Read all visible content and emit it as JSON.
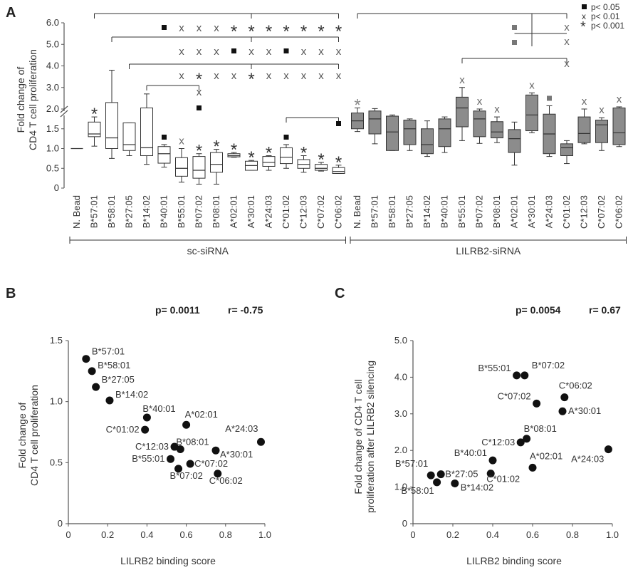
{
  "panels": {
    "A": "A",
    "B": "B",
    "C": "C"
  },
  "legend": {
    "square": "p< 0.05",
    "x": "p< 0.01",
    "star": "p< 0.001"
  },
  "colors": {
    "sc": "#ffffff",
    "lilrb2": "#8c8c8c",
    "mark_gray": "#777777",
    "mark_black": "#111111"
  },
  "chart_data": [
    {
      "type": "box",
      "panel": "A",
      "ylabel": "Fold change of\nCD4 T cell proliferation",
      "y_ticks": [
        "0",
        "0.5",
        "1.0",
        "1.5",
        "2.0",
        "3.0",
        "4.0",
        "5.0",
        "6.0"
      ],
      "y_axis_break": "between 2.0 and 3.0",
      "groups": [
        {
          "name": "sc-siRNA",
          "categories": [
            "N. Bead",
            "B*57:01",
            "B*58:01",
            "B*27:05",
            "B*14:02",
            "B*40:01",
            "B*55:01",
            "B*07:02",
            "B*08:01",
            "A*02:01",
            "A*30:01",
            "A*24:03",
            "C*01:02",
            "C*12:03",
            "C*07:02",
            "C*06:02"
          ],
          "boxes": [
            {
              "min": 1.0,
              "q1": 1.0,
              "median": 1.0,
              "q3": 1.0,
              "max": 1.0
            },
            {
              "min": 1.06,
              "q1": 1.3,
              "median": 1.37,
              "q3": 1.67,
              "max": 1.8
            },
            {
              "min": 0.75,
              "q1": 1.0,
              "median": 1.27,
              "q3": 2.3,
              "max": 3.8
            },
            {
              "min": 0.82,
              "q1": 0.95,
              "median": 1.1,
              "q3": 1.65,
              "max": 1.65
            },
            {
              "min": 0.6,
              "q1": 0.82,
              "median": 1.02,
              "q3": 2.05,
              "max": 2.7
            },
            {
              "min": 0.53,
              "q1": 0.63,
              "median": 0.87,
              "q3": 1.05,
              "max": 1.1
            },
            {
              "min": 0.15,
              "q1": 0.3,
              "median": 0.5,
              "q3": 0.77,
              "max": 1.0
            },
            {
              "min": 0.1,
              "q1": 0.25,
              "median": 0.45,
              "q3": 0.8,
              "max": 0.87
            },
            {
              "min": 0.1,
              "q1": 0.4,
              "median": 0.6,
              "q3": 0.9,
              "max": 0.98
            },
            {
              "min": 0.78,
              "q1": 0.79,
              "median": 0.82,
              "q3": 0.87,
              "max": 0.9
            },
            {
              "min": 0.45,
              "q1": 0.45,
              "median": 0.57,
              "q3": 0.68,
              "max": 0.7
            },
            {
              "min": 0.45,
              "q1": 0.55,
              "median": 0.65,
              "q3": 0.8,
              "max": 0.82
            },
            {
              "min": 0.5,
              "q1": 0.62,
              "median": 0.78,
              "q3": 1.02,
              "max": 1.1
            },
            {
              "min": 0.4,
              "q1": 0.5,
              "median": 0.6,
              "q3": 0.72,
              "max": 0.82
            },
            {
              "min": 0.43,
              "q1": 0.45,
              "median": 0.5,
              "q3": 0.6,
              "max": 0.65
            },
            {
              "min": 0.37,
              "q1": 0.37,
              "median": 0.42,
              "q3": 0.52,
              "max": 0.58
            }
          ],
          "markers": [
            "",
            "star",
            "",
            "",
            "",
            "square",
            "x",
            "star",
            "star",
            "star",
            "star",
            "star",
            "square",
            "star",
            "star",
            "star"
          ]
        },
        {
          "name": "LILRB2-siRNA",
          "categories": [
            "N. Bead",
            "B*57:01",
            "B*58:01",
            "B*27:05",
            "B*14:02",
            "B*40:01",
            "B*55:01",
            "B*07:02",
            "B*08:01",
            "A*02:01",
            "A*30:01",
            "A*24:03",
            "C*01:02",
            "C*12:03",
            "C*07:02",
            "C*06:02"
          ],
          "boxes": [
            {
              "min": 1.43,
              "q1": 1.5,
              "median": 1.7,
              "q3": 1.9,
              "max": 2.05
            },
            {
              "min": 1.12,
              "q1": 1.37,
              "median": 1.75,
              "q3": 1.95,
              "max": 2.02
            },
            {
              "min": 0.95,
              "q1": 0.95,
              "median": 1.42,
              "q3": 1.82,
              "max": 1.85
            },
            {
              "min": 0.95,
              "q1": 1.1,
              "median": 1.5,
              "q3": 1.72,
              "max": 1.75
            },
            {
              "min": 0.8,
              "q1": 0.87,
              "median": 1.1,
              "q3": 1.5,
              "max": 1.7
            },
            {
              "min": 0.9,
              "q1": 1.05,
              "median": 1.5,
              "q3": 1.75,
              "max": 1.8
            },
            {
              "min": 1.2,
              "q1": 1.55,
              "median": 2.05,
              "q3": 2.55,
              "max": 3.0
            },
            {
              "min": 1.13,
              "q1": 1.3,
              "median": 1.75,
              "q3": 1.95,
              "max": 2.0
            },
            {
              "min": 1.15,
              "q1": 1.27,
              "median": 1.42,
              "q3": 1.68,
              "max": 1.8
            },
            {
              "min": 0.58,
              "q1": 0.9,
              "median": 1.25,
              "q3": 1.48,
              "max": 1.67
            },
            {
              "min": 1.4,
              "q1": 1.45,
              "median": 1.85,
              "q3": 2.65,
              "max": 2.75
            },
            {
              "min": 0.8,
              "q1": 0.87,
              "median": 1.37,
              "q3": 1.87,
              "max": 2.15
            },
            {
              "min": 0.62,
              "q1": 0.82,
              "median": 1.02,
              "q3": 1.12,
              "max": 1.2
            },
            {
              "min": 1.12,
              "q1": 1.15,
              "median": 1.38,
              "q3": 1.8,
              "max": 2.0
            },
            {
              "min": 0.95,
              "q1": 1.15,
              "median": 1.6,
              "q3": 1.72,
              "max": 1.78
            },
            {
              "min": 1.05,
              "q1": 1.1,
              "median": 1.4,
              "q3": 2.05,
              "max": 2.1
            }
          ],
          "markers": [
            "star",
            "",
            "",
            "",
            "",
            "",
            "x",
            "x",
            "x",
            "",
            "x",
            "square",
            "",
            "x",
            "x",
            "x"
          ]
        }
      ]
    },
    {
      "type": "scatter",
      "panel": "B",
      "stat": {
        "p": "p= 0.0011",
        "r": "r= -0.75"
      },
      "xlabel": "LILRB2 binding score",
      "ylabel": "Fold change of\nCD4 T cell proliferation",
      "xlim": [
        0,
        1.0
      ],
      "ylim": [
        0,
        1.5
      ],
      "x_ticks": [
        "0",
        "0.2",
        "0.4",
        "0.6",
        "0.8",
        "1.0"
      ],
      "y_ticks": [
        "0",
        "0.5",
        "1.0",
        "1.5"
      ],
      "points": [
        {
          "label": "B*57:01",
          "x": 0.09,
          "y": 1.35
        },
        {
          "label": "B*58:01",
          "x": 0.12,
          "y": 1.25
        },
        {
          "label": "B*27:05",
          "x": 0.14,
          "y": 1.12
        },
        {
          "label": "B*14:02",
          "x": 0.21,
          "y": 1.01
        },
        {
          "label": "B*40:01",
          "x": 0.4,
          "y": 0.87
        },
        {
          "label": "C*01:02",
          "x": 0.39,
          "y": 0.77
        },
        {
          "label": "A*02:01",
          "x": 0.6,
          "y": 0.81
        },
        {
          "label": "C*12:03",
          "x": 0.54,
          "y": 0.63
        },
        {
          "label": "B*08:01",
          "x": 0.57,
          "y": 0.61
        },
        {
          "label": "B*55:01",
          "x": 0.52,
          "y": 0.53
        },
        {
          "label": "B*07:02",
          "x": 0.56,
          "y": 0.45
        },
        {
          "label": "C*07:02",
          "x": 0.62,
          "y": 0.49
        },
        {
          "label": "A*30:01",
          "x": 0.75,
          "y": 0.6
        },
        {
          "label": "C*06:02",
          "x": 0.76,
          "y": 0.41
        },
        {
          "label": "A*24:03",
          "x": 0.98,
          "y": 0.67
        }
      ]
    },
    {
      "type": "scatter",
      "panel": "C",
      "stat": {
        "p": "p= 0.0054",
        "r": "r= 0.67"
      },
      "xlabel": "LILRB2 binding score",
      "ylabel": "Fold change of CD4 T cell\nproliferation after LILRB2 silencing",
      "xlim": [
        0,
        1.0
      ],
      "ylim": [
        0,
        5.0
      ],
      "x_ticks": [
        "0",
        "0.2",
        "0.4",
        "0.6",
        "0.8",
        "1.0"
      ],
      "y_ticks": [
        "0",
        "1.0",
        "2.0",
        "3.0",
        "4.0",
        "5.0"
      ],
      "points": [
        {
          "label": "B*57:01",
          "x": 0.09,
          "y": 1.32
        },
        {
          "label": "B*58:01",
          "x": 0.12,
          "y": 1.13
        },
        {
          "label": "B*27:05",
          "x": 0.14,
          "y": 1.35
        },
        {
          "label": "B*14:02",
          "x": 0.21,
          "y": 1.1
        },
        {
          "label": "C*01:02",
          "x": 0.39,
          "y": 1.37
        },
        {
          "label": "B*40:01",
          "x": 0.4,
          "y": 1.73
        },
        {
          "label": "A*02:01",
          "x": 0.6,
          "y": 1.53
        },
        {
          "label": "C*12:03",
          "x": 0.54,
          "y": 2.22
        },
        {
          "label": "B*08:01",
          "x": 0.57,
          "y": 2.32
        },
        {
          "label": "B*55:01",
          "x": 0.52,
          "y": 4.05
        },
        {
          "label": "B*07:02",
          "x": 0.56,
          "y": 4.05
        },
        {
          "label": "C*07:02",
          "x": 0.62,
          "y": 3.28
        },
        {
          "label": "C*06:02",
          "x": 0.76,
          "y": 3.45
        },
        {
          "label": "A*30:01",
          "x": 0.75,
          "y": 3.07
        },
        {
          "label": "A*24:03",
          "x": 0.98,
          "y": 2.03
        }
      ]
    }
  ]
}
